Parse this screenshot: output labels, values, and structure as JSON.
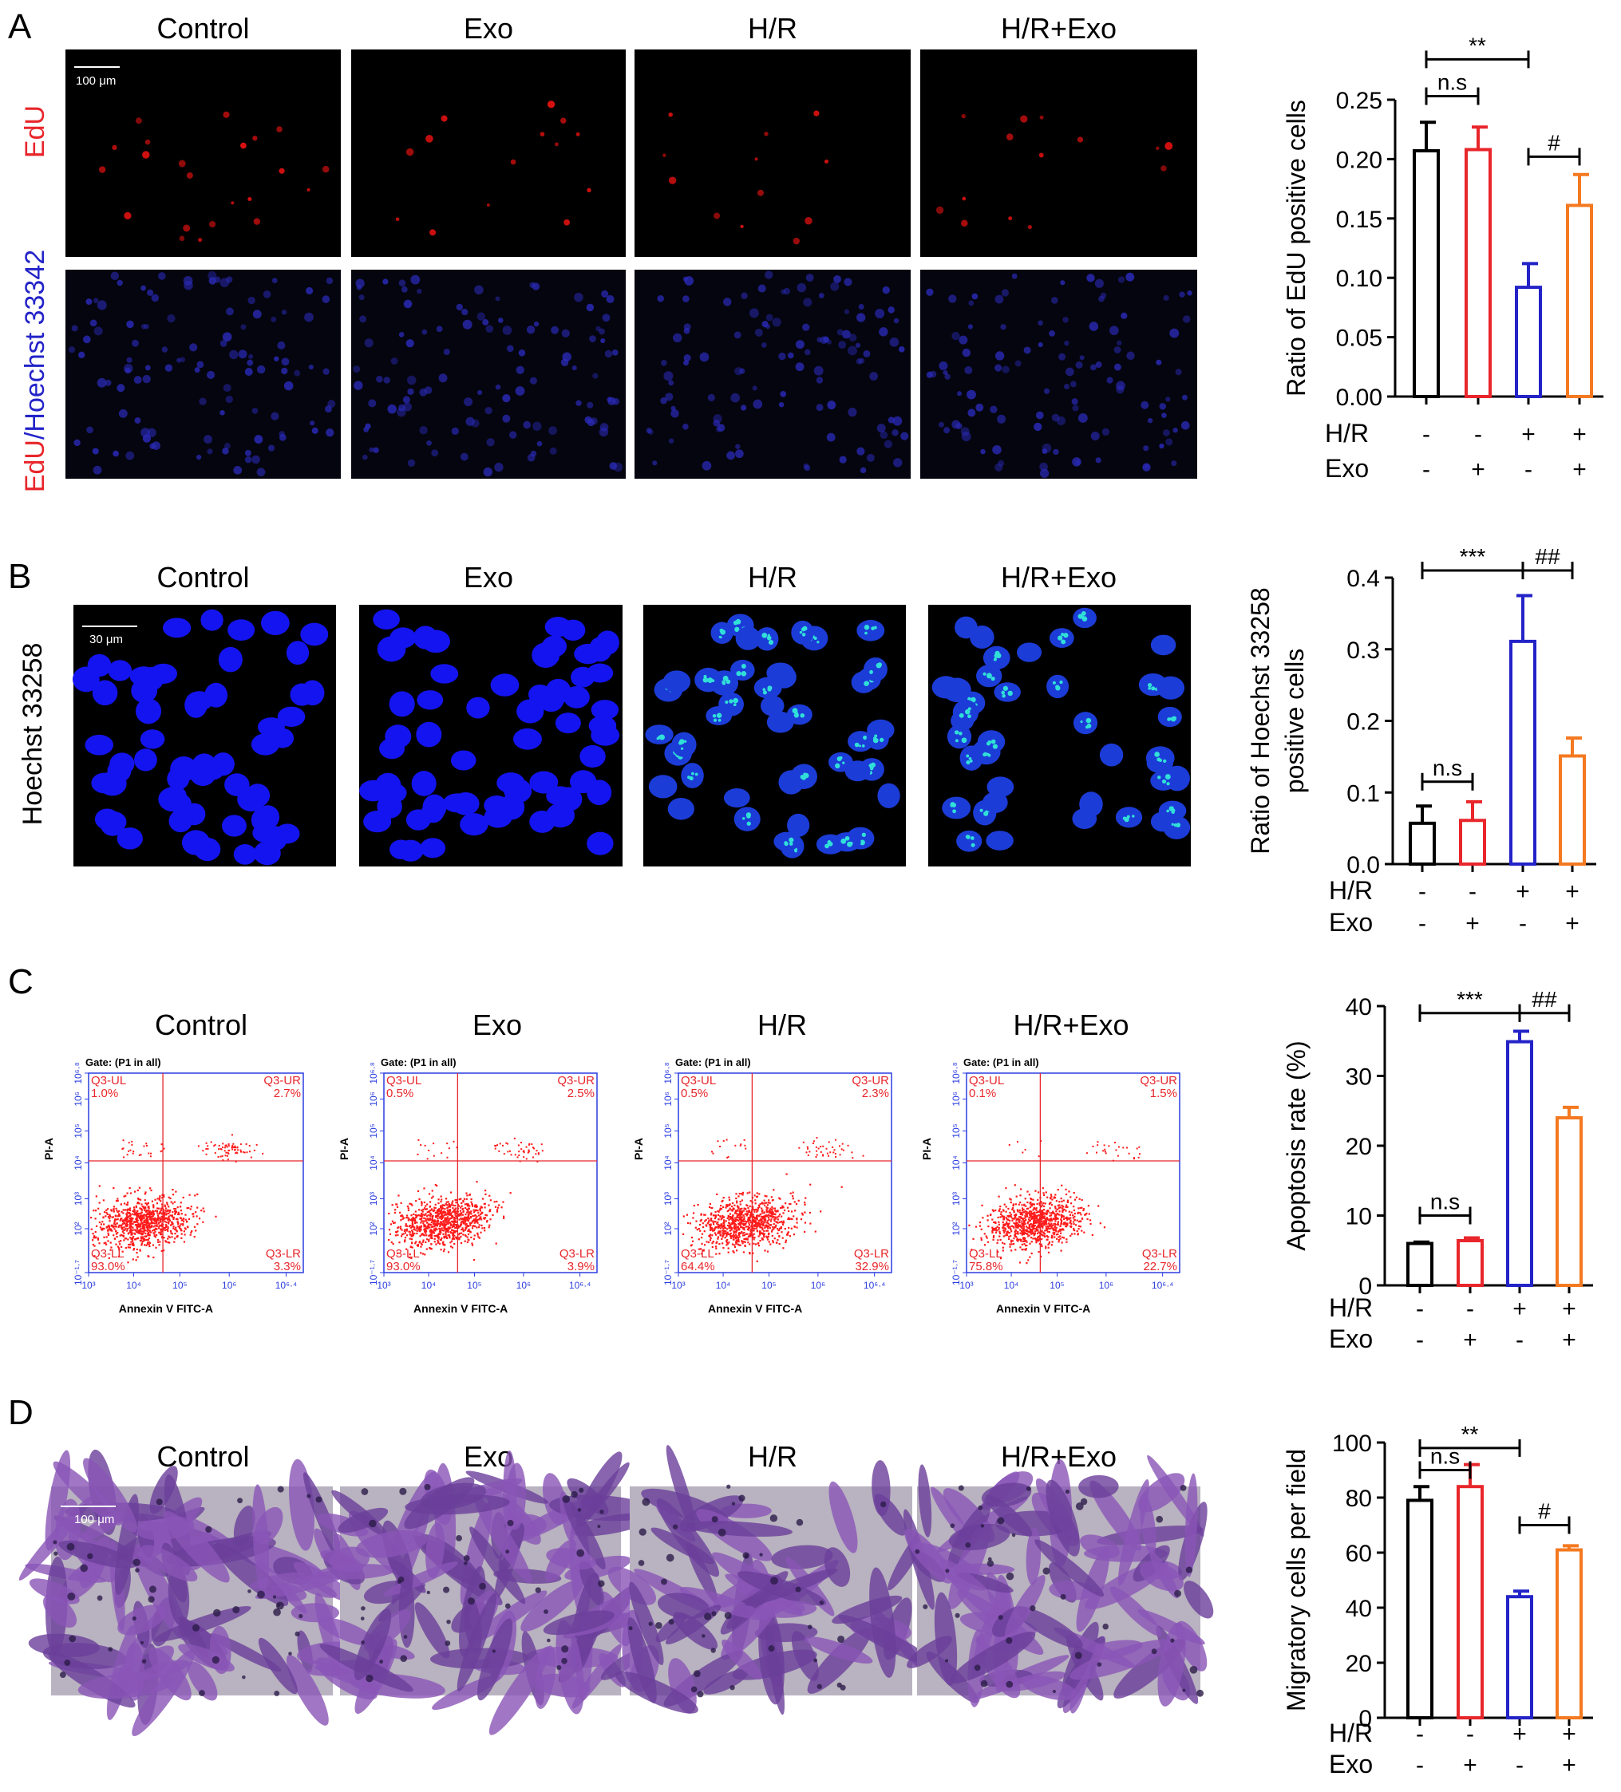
{
  "colors": {
    "control": "#000000",
    "exo": "#e8262b",
    "hr": "#2323c8",
    "hrexo": "#f47920",
    "flow_axis": "#2b3de0",
    "flow_quad": "#e8262b",
    "dots": "#ff1a1a"
  },
  "panels": [
    {
      "letter": "A",
      "groups": [
        "Control",
        "Exo",
        "H/R",
        "H/R+Exo"
      ],
      "row_labels": [
        {
          "parts": [
            {
              "text": "EdU",
              "color": "#e8262b"
            }
          ]
        },
        {
          "parts": [
            {
              "text": "EdU",
              "color": "#e8262b"
            },
            {
              "text": "/Hoechst 33342",
              "color": "#2323c8"
            }
          ]
        }
      ],
      "scale_bar": "100 μm",
      "image_styles": [
        "edu-red",
        "hoechst-blue-small"
      ]
    },
    {
      "letter": "B",
      "groups": [
        "Control",
        "Exo",
        "H/R",
        "H/R+Exo"
      ],
      "row_labels": [
        {
          "parts": [
            {
              "text": "Hoechst 33258",
              "color": "#000000"
            }
          ]
        }
      ],
      "scale_bar": "30 μm",
      "image_styles": [
        "hoechst-nuclei"
      ]
    },
    {
      "letter": "C",
      "groups": [
        "Control",
        "Exo",
        "H/R",
        "H/R+Exo"
      ],
      "flow": {
        "gate": "Gate: (P1 in all)",
        "xlabel": "Annexin V FITC-A",
        "ylabel": "PI-A",
        "xticks": [
          "10³",
          "10⁴",
          "10⁵",
          "10⁶",
          "10⁶·⁴"
        ],
        "yticks": [
          "10⁻¹·⁷",
          "10²",
          "10³",
          "10⁴",
          "10⁵",
          "10⁶",
          "10⁶·⁸"
        ],
        "plots": [
          {
            "UL": "Q3-UL",
            "UL_v": "1.0%",
            "UR": "Q3-UR",
            "UR_v": "2.7%",
            "LL": "Q3-LL",
            "LL_v": "93.0%",
            "LR": "Q3-LR",
            "LR_v": "3.3%"
          },
          {
            "UL": "Q3-UL",
            "UL_v": "0.5%",
            "UR": "Q3-UR",
            "UR_v": "2.5%",
            "LL": "Q3-LL",
            "LL_v": "93.0%",
            "LR": "Q3-LR",
            "LR_v": "3.9%"
          },
          {
            "UL": "Q3-UL",
            "UL_v": "0.5%",
            "UR": "Q3-UR",
            "UR_v": "2.3%",
            "LL": "Q3-LL",
            "LL_v": "64.4%",
            "LR": "Q3-LR",
            "LR_v": "32.9%"
          },
          {
            "UL": "Q3-UL",
            "UL_v": "0.1%",
            "UR": "Q3-UR",
            "UR_v": "1.5%",
            "LL": "Q3-LL",
            "LL_v": "75.8%",
            "LR": "Q3-LR",
            "LR_v": "22.7%"
          }
        ]
      }
    },
    {
      "letter": "D",
      "groups": [
        "Control",
        "Exo",
        "H/R",
        "H/R+Exo"
      ],
      "row_labels": [],
      "scale_bar": "100 μm",
      "image_styles": [
        "crystal-violet"
      ]
    }
  ],
  "treatment_rows": [
    {
      "label": "H/R",
      "signs": [
        "-",
        "-",
        "+",
        "+"
      ]
    },
    {
      "label": "Exo",
      "signs": [
        "-",
        "+",
        "-",
        "+"
      ]
    }
  ],
  "chart_data": [
    {
      "type": "bar",
      "panel": "A",
      "ylabel": "Ratio of EdU positive cells",
      "ylim": [
        0,
        0.25
      ],
      "yticks": [
        "0.00",
        "0.05",
        "0.10",
        "0.15",
        "0.20",
        "0.25"
      ],
      "tick_values": [
        0,
        0.05,
        0.1,
        0.15,
        0.2,
        0.25
      ],
      "values": [
        0.207,
        0.208,
        0.092,
        0.161
      ],
      "errors": [
        0.024,
        0.019,
        0.02,
        0.026
      ],
      "annotations": [
        {
          "from": 0,
          "to": 2,
          "label": "**",
          "level": 0.284
        },
        {
          "from": 0,
          "to": 1,
          "label": "n.s",
          "level": 0.253
        },
        {
          "from": 2,
          "to": 3,
          "label": "#",
          "level": 0.202
        }
      ]
    },
    {
      "type": "bar",
      "panel": "B",
      "ylabel": "Ratio of Hoechst 33258\npositive cells",
      "ylim": [
        0,
        0.4
      ],
      "yticks": [
        "0.0",
        "0.1",
        "0.2",
        "0.3",
        "0.4"
      ],
      "tick_values": [
        0,
        0.1,
        0.2,
        0.3,
        0.4
      ],
      "values": [
        0.057,
        0.061,
        0.311,
        0.151
      ],
      "errors": [
        0.024,
        0.026,
        0.064,
        0.025
      ],
      "annotations": [
        {
          "from": 0,
          "to": 2,
          "label": "***",
          "level": 0.41
        },
        {
          "from": 2,
          "to": 3,
          "label": "##",
          "level": 0.41
        },
        {
          "from": 0,
          "to": 1,
          "label": "n.s",
          "level": 0.115
        }
      ]
    },
    {
      "type": "bar",
      "panel": "C",
      "ylabel": "Apoptosis rate (%)",
      "ylim": [
        0,
        40
      ],
      "yticks": [
        "0",
        "10",
        "20",
        "30",
        "40"
      ],
      "tick_values": [
        0,
        10,
        20,
        30,
        40
      ],
      "values": [
        6.0,
        6.4,
        34.9,
        24.0
      ],
      "errors": [
        0.2,
        0.4,
        1.5,
        1.5
      ],
      "annotations": [
        {
          "from": 0,
          "to": 2,
          "label": "***",
          "level": 39.0
        },
        {
          "from": 2,
          "to": 3,
          "label": "##",
          "level": 39.0
        },
        {
          "from": 0,
          "to": 1,
          "label": "n.s",
          "level": 10.0
        }
      ]
    },
    {
      "type": "bar",
      "panel": "D",
      "ylabel": "Migratory cells per field",
      "ylim": [
        0,
        100
      ],
      "yticks": [
        "0",
        "20",
        "40",
        "60",
        "80",
        "100"
      ],
      "tick_values": [
        0,
        20,
        40,
        60,
        80,
        100
      ],
      "values": [
        79,
        84,
        44,
        61
      ],
      "errors": [
        5,
        8,
        2,
        1.5
      ],
      "annotations": [
        {
          "from": 0,
          "to": 2,
          "label": "**",
          "level": 98
        },
        {
          "from": 0,
          "to": 1,
          "label": "n.s",
          "level": 90
        },
        {
          "from": 2,
          "to": 3,
          "label": "#",
          "level": 70
        }
      ]
    }
  ]
}
